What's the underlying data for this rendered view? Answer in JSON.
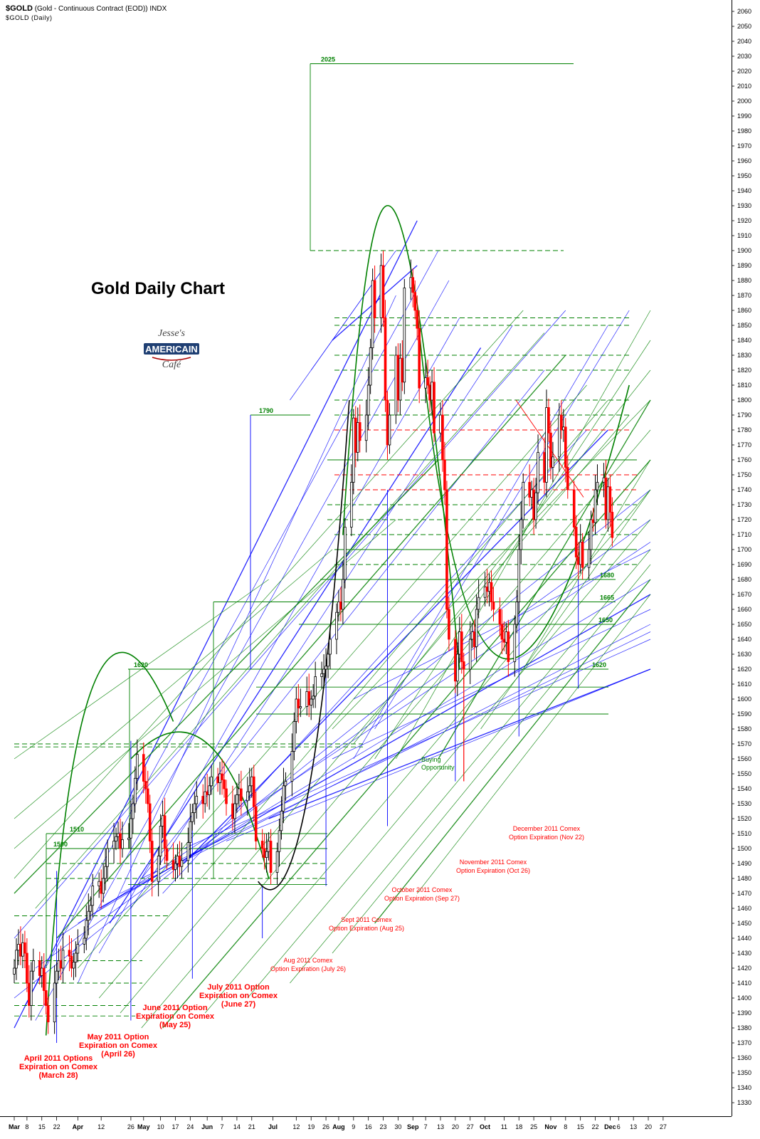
{
  "header": {
    "symbol": "$GOLD",
    "description": "(Gold - Continuous Contract (EOD)) INDX",
    "subtitle": "$GOLD (Daily)"
  },
  "logo": {
    "line1": "Jesse's",
    "line2": "AMERICAIN",
    "line3": "Café"
  },
  "chart_data": {
    "type": "candlestick",
    "title": "Gold Daily Chart",
    "ylim": [
      1325,
      2062
    ],
    "y_axis_position": "right",
    "y_ticks": [
      1330,
      1340,
      1350,
      1360,
      1370,
      1380,
      1390,
      1400,
      1410,
      1420,
      1430,
      1440,
      1450,
      1460,
      1470,
      1480,
      1490,
      1500,
      1510,
      1520,
      1530,
      1540,
      1550,
      1560,
      1570,
      1580,
      1590,
      1600,
      1610,
      1620,
      1630,
      1640,
      1650,
      1660,
      1670,
      1680,
      1690,
      1700,
      1710,
      1720,
      1730,
      1740,
      1750,
      1760,
      1770,
      1780,
      1790,
      1800,
      1810,
      1820,
      1830,
      1840,
      1850,
      1860,
      1870,
      1880,
      1890,
      1900,
      1910,
      1920,
      1930,
      1940,
      1950,
      1960,
      1970,
      1980,
      1990,
      2000,
      2010,
      2020,
      2030,
      2040,
      2050,
      2060
    ],
    "x_ticks": [
      {
        "day": 0,
        "label": "Mar",
        "bold": true
      },
      {
        "day": 6,
        "label": "8",
        "bold": false
      },
      {
        "day": 13,
        "label": "15",
        "bold": false
      },
      {
        "day": 20,
        "label": "22",
        "bold": false
      },
      {
        "day": 30,
        "label": "Apr",
        "bold": true
      },
      {
        "day": 41,
        "label": "12",
        "bold": false
      },
      {
        "day": 55,
        "label": "26",
        "bold": false
      },
      {
        "day": 61,
        "label": "May",
        "bold": true
      },
      {
        "day": 69,
        "label": "10",
        "bold": false
      },
      {
        "day": 76,
        "label": "17",
        "bold": false
      },
      {
        "day": 83,
        "label": "24",
        "bold": false
      },
      {
        "day": 91,
        "label": "Jun",
        "bold": true
      },
      {
        "day": 98,
        "label": "7",
        "bold": false
      },
      {
        "day": 105,
        "label": "14",
        "bold": false
      },
      {
        "day": 112,
        "label": "21",
        "bold": false
      },
      {
        "day": 122,
        "label": "Jul",
        "bold": true
      },
      {
        "day": 133,
        "label": "12",
        "bold": false
      },
      {
        "day": 140,
        "label": "19",
        "bold": false
      },
      {
        "day": 147,
        "label": "26",
        "bold": false
      },
      {
        "day": 153,
        "label": "Aug",
        "bold": true
      },
      {
        "day": 160,
        "label": "9",
        "bold": false
      },
      {
        "day": 167,
        "label": "16",
        "bold": false
      },
      {
        "day": 174,
        "label": "23",
        "bold": false
      },
      {
        "day": 181,
        "label": "30",
        "bold": false
      },
      {
        "day": 188,
        "label": "Sep",
        "bold": true
      },
      {
        "day": 194,
        "label": "7",
        "bold": false
      },
      {
        "day": 201,
        "label": "13",
        "bold": false
      },
      {
        "day": 208,
        "label": "20",
        "bold": false
      },
      {
        "day": 215,
        "label": "27",
        "bold": false
      },
      {
        "day": 222,
        "label": "Oct",
        "bold": true
      },
      {
        "day": 231,
        "label": "11",
        "bold": false
      },
      {
        "day": 238,
        "label": "18",
        "bold": false
      },
      {
        "day": 245,
        "label": "25",
        "bold": false
      },
      {
        "day": 253,
        "label": "Nov",
        "bold": true
      },
      {
        "day": 260,
        "label": "8",
        "bold": false
      },
      {
        "day": 267,
        "label": "15",
        "bold": false
      },
      {
        "day": 274,
        "label": "22",
        "bold": false
      },
      {
        "day": 281,
        "label": "Dec",
        "bold": true
      },
      {
        "day": 285,
        "label": "6",
        "bold": false
      },
      {
        "day": 292,
        "label": "13",
        "bold": false
      },
      {
        "day": 299,
        "label": "20",
        "bold": false
      },
      {
        "day": 306,
        "label": "27",
        "bold": false
      }
    ],
    "candles": [
      {
        "day": 0,
        "c": 1420
      },
      {
        "day": 1,
        "c": 1432
      },
      {
        "day": 2,
        "c": 1436
      },
      {
        "day": 3,
        "c": 1428
      },
      {
        "day": 4,
        "c": 1437
      },
      {
        "day": 5,
        "c": 1430
      },
      {
        "day": 6,
        "c": 1410
      },
      {
        "day": 7,
        "c": 1395
      },
      {
        "day": 8,
        "c": 1418
      },
      {
        "day": 9,
        "c": 1425
      },
      {
        "day": 12,
        "c": 1415
      },
      {
        "day": 13,
        "c": 1420
      },
      {
        "day": 14,
        "c": 1405
      },
      {
        "day": 15,
        "c": 1395
      },
      {
        "day": 16,
        "c": 1384
      },
      {
        "day": 19,
        "c": 1410
      },
      {
        "day": 20,
        "c": 1418
      },
      {
        "day": 21,
        "c": 1425
      },
      {
        "day": 22,
        "c": 1420
      },
      {
        "day": 23,
        "c": 1432
      },
      {
        "day": 26,
        "c": 1428
      },
      {
        "day": 27,
        "c": 1420
      },
      {
        "day": 28,
        "c": 1424
      },
      {
        "day": 29,
        "c": 1430
      },
      {
        "day": 30,
        "c": 1436
      },
      {
        "day": 33,
        "c": 1440
      },
      {
        "day": 34,
        "c": 1452
      },
      {
        "day": 35,
        "c": 1458
      },
      {
        "day": 36,
        "c": 1462
      },
      {
        "day": 37,
        "c": 1475
      },
      {
        "day": 40,
        "c": 1478
      },
      {
        "day": 41,
        "c": 1470
      },
      {
        "day": 42,
        "c": 1480
      },
      {
        "day": 43,
        "c": 1488
      },
      {
        "day": 44,
        "c": 1500
      },
      {
        "day": 47,
        "c": 1505
      },
      {
        "day": 48,
        "c": 1508
      },
      {
        "day": 49,
        "c": 1510
      },
      {
        "day": 50,
        "c": 1500
      },
      {
        "day": 51,
        "c": 1506
      },
      {
        "day": 54,
        "c": 1507
      },
      {
        "day": 55,
        "c": 1520
      },
      {
        "day": 56,
        "c": 1530
      },
      {
        "day": 57,
        "c": 1547
      },
      {
        "day": 58,
        "c": 1563
      },
      {
        "day": 61,
        "c": 1545
      },
      {
        "day": 62,
        "c": 1540
      },
      {
        "day": 63,
        "c": 1530
      },
      {
        "day": 64,
        "c": 1505
      },
      {
        "day": 65,
        "c": 1478
      },
      {
        "day": 68,
        "c": 1495
      },
      {
        "day": 69,
        "c": 1515
      },
      {
        "day": 70,
        "c": 1522
      },
      {
        "day": 71,
        "c": 1500
      },
      {
        "day": 72,
        "c": 1492
      },
      {
        "day": 75,
        "c": 1486
      },
      {
        "day": 76,
        "c": 1490
      },
      {
        "day": 77,
        "c": 1495
      },
      {
        "day": 78,
        "c": 1488
      },
      {
        "day": 79,
        "c": 1492
      },
      {
        "day": 82,
        "c": 1504
      },
      {
        "day": 83,
        "c": 1518
      },
      {
        "day": 84,
        "c": 1524
      },
      {
        "day": 85,
        "c": 1530
      },
      {
        "day": 86,
        "c": 1535
      },
      {
        "day": 89,
        "c": 1530
      },
      {
        "day": 90,
        "c": 1538
      },
      {
        "day": 91,
        "c": 1536
      },
      {
        "day": 92,
        "c": 1542
      },
      {
        "day": 93,
        "c": 1548
      },
      {
        "day": 96,
        "c": 1544
      },
      {
        "day": 97,
        "c": 1550
      },
      {
        "day": 98,
        "c": 1546
      },
      {
        "day": 99,
        "c": 1540
      },
      {
        "day": 100,
        "c": 1530
      },
      {
        "day": 103,
        "c": 1520
      },
      {
        "day": 104,
        "c": 1530
      },
      {
        "day": 105,
        "c": 1536
      },
      {
        "day": 106,
        "c": 1540
      },
      {
        "day": 107,
        "c": 1532
      },
      {
        "day": 110,
        "c": 1538
      },
      {
        "day": 111,
        "c": 1542
      },
      {
        "day": 112,
        "c": 1548
      },
      {
        "day": 113,
        "c": 1528
      },
      {
        "day": 114,
        "c": 1505
      },
      {
        "day": 117,
        "c": 1500
      },
      {
        "day": 118,
        "c": 1494
      },
      {
        "day": 119,
        "c": 1498
      },
      {
        "day": 120,
        "c": 1505
      },
      {
        "day": 121,
        "c": 1484
      },
      {
        "day": 124,
        "c": 1498
      },
      {
        "day": 125,
        "c": 1512
      },
      {
        "day": 126,
        "c": 1525
      },
      {
        "day": 127,
        "c": 1542
      },
      {
        "day": 128,
        "c": 1545
      },
      {
        "day": 131,
        "c": 1565
      },
      {
        "day": 132,
        "c": 1585
      },
      {
        "day": 133,
        "c": 1600
      },
      {
        "day": 134,
        "c": 1594
      },
      {
        "day": 135,
        "c": 1595
      },
      {
        "day": 138,
        "c": 1605
      },
      {
        "day": 139,
        "c": 1596
      },
      {
        "day": 140,
        "c": 1600
      },
      {
        "day": 141,
        "c": 1602
      },
      {
        "day": 142,
        "c": 1615
      },
      {
        "day": 145,
        "c": 1617
      },
      {
        "day": 146,
        "c": 1620
      },
      {
        "day": 147,
        "c": 1622
      },
      {
        "day": 148,
        "c": 1630
      },
      {
        "day": 149,
        "c": 1640
      },
      {
        "day": 152,
        "c": 1658
      },
      {
        "day": 153,
        "c": 1665
      },
      {
        "day": 154,
        "c": 1660
      },
      {
        "day": 155,
        "c": 1680
      },
      {
        "day": 156,
        "c": 1715
      },
      {
        "day": 159,
        "c": 1745
      },
      {
        "day": 160,
        "c": 1788
      },
      {
        "day": 161,
        "c": 1765
      },
      {
        "day": 162,
        "c": 1785
      },
      {
        "day": 163,
        "c": 1773
      },
      {
        "day": 166,
        "c": 1790
      },
      {
        "day": 167,
        "c": 1810
      },
      {
        "day": 168,
        "c": 1835
      },
      {
        "day": 169,
        "c": 1880
      },
      {
        "day": 170,
        "c": 1855
      },
      {
        "day": 173,
        "c": 1890
      },
      {
        "day": 174,
        "c": 1855
      },
      {
        "day": 175,
        "c": 1800
      },
      {
        "day": 176,
        "c": 1770
      },
      {
        "day": 177,
        "c": 1790
      },
      {
        "day": 180,
        "c": 1830
      },
      {
        "day": 181,
        "c": 1800
      },
      {
        "day": 182,
        "c": 1828
      },
      {
        "day": 183,
        "c": 1812
      },
      {
        "day": 184,
        "c": 1875
      },
      {
        "day": 187,
        "c": 1882
      },
      {
        "day": 188,
        "c": 1872
      },
      {
        "day": 189,
        "c": 1860
      },
      {
        "day": 190,
        "c": 1848
      },
      {
        "day": 191,
        "c": 1808
      },
      {
        "day": 194,
        "c": 1815
      },
      {
        "day": 195,
        "c": 1810
      },
      {
        "day": 196,
        "c": 1800
      },
      {
        "day": 197,
        "c": 1812
      },
      {
        "day": 198,
        "c": 1778
      },
      {
        "day": 201,
        "c": 1790
      },
      {
        "day": 202,
        "c": 1760
      },
      {
        "day": 203,
        "c": 1740
      },
      {
        "day": 204,
        "c": 1660
      },
      {
        "day": 205,
        "c": 1640
      },
      {
        "day": 208,
        "c": 1612
      },
      {
        "day": 209,
        "c": 1630
      },
      {
        "day": 210,
        "c": 1645
      },
      {
        "day": 211,
        "c": 1625
      },
      {
        "day": 212,
        "c": 1620
      },
      {
        "day": 215,
        "c": 1640
      },
      {
        "day": 216,
        "c": 1645
      },
      {
        "day": 217,
        "c": 1635
      },
      {
        "day": 218,
        "c": 1660
      },
      {
        "day": 219,
        "c": 1668
      },
      {
        "day": 222,
        "c": 1675
      },
      {
        "day": 223,
        "c": 1672
      },
      {
        "day": 224,
        "c": 1678
      },
      {
        "day": 225,
        "c": 1665
      },
      {
        "day": 226,
        "c": 1660
      },
      {
        "day": 229,
        "c": 1650
      },
      {
        "day": 230,
        "c": 1640
      },
      {
        "day": 231,
        "c": 1638
      },
      {
        "day": 232,
        "c": 1645
      },
      {
        "day": 233,
        "c": 1625
      },
      {
        "day": 236,
        "c": 1650
      },
      {
        "day": 237,
        "c": 1665
      },
      {
        "day": 238,
        "c": 1700
      },
      {
        "day": 239,
        "c": 1720
      },
      {
        "day": 240,
        "c": 1745
      },
      {
        "day": 243,
        "c": 1735
      },
      {
        "day": 244,
        "c": 1740
      },
      {
        "day": 245,
        "c": 1720
      },
      {
        "day": 246,
        "c": 1738
      },
      {
        "day": 247,
        "c": 1765
      },
      {
        "day": 250,
        "c": 1745
      },
      {
        "day": 251,
        "c": 1795
      },
      {
        "day": 252,
        "c": 1778
      },
      {
        "day": 253,
        "c": 1755
      },
      {
        "day": 254,
        "c": 1762
      },
      {
        "day": 257,
        "c": 1790
      },
      {
        "day": 258,
        "c": 1780
      },
      {
        "day": 259,
        "c": 1782
      },
      {
        "day": 260,
        "c": 1755
      },
      {
        "day": 261,
        "c": 1740
      },
      {
        "day": 264,
        "c": 1715
      },
      {
        "day": 265,
        "c": 1695
      },
      {
        "day": 266,
        "c": 1690
      },
      {
        "day": 267,
        "c": 1705
      },
      {
        "day": 268,
        "c": 1688
      },
      {
        "day": 271,
        "c": 1700
      },
      {
        "day": 272,
        "c": 1720
      },
      {
        "day": 273,
        "c": 1718
      },
      {
        "day": 274,
        "c": 1740
      },
      {
        "day": 275,
        "c": 1745
      },
      {
        "day": 278,
        "c": 1748
      },
      {
        "day": 279,
        "c": 1720
      },
      {
        "day": 280,
        "c": 1742
      },
      {
        "day": 281,
        "c": 1725
      },
      {
        "day": 282,
        "c": 1708
      }
    ],
    "level_labels": [
      {
        "text": "2025",
        "price": 2025
      },
      {
        "text": "1790",
        "price": 1790
      },
      {
        "text": "1620",
        "price": 1620
      },
      {
        "text": "1510",
        "price": 1510
      },
      {
        "text": "1500",
        "price": 1500
      },
      {
        "text": "1680",
        "price": 1680
      },
      {
        "text": "1665",
        "price": 1665
      },
      {
        "text": "1650",
        "price": 1650
      },
      {
        "text": "1620",
        "price": 1620
      }
    ],
    "annotations": [
      {
        "lines": [
          "April 2011 Options",
          "Expiration on Comex",
          "(March 28)"
        ],
        "day": 20
      },
      {
        "lines": [
          "May 2011 Option",
          "Expiration on Comex",
          "(April 26)"
        ],
        "day": 55
      },
      {
        "lines": [
          "June 2011 Option",
          "Expiration on Comex",
          "(May 25)"
        ],
        "day": 84
      },
      {
        "lines": [
          "July 2011 Option",
          "Expiration on Comex",
          "(June 27)"
        ],
        "day": 117
      },
      {
        "lines": [
          "Aug 2011 Comex",
          "Option Expiration (July 26)"
        ],
        "day": 147
      },
      {
        "lines": [
          "Sept 2011 Comex",
          "Option Expiration (Aug 25)"
        ],
        "day": 176
      },
      {
        "lines": [
          "October 2011 Comex",
          "Option Expiration (Sep 27)"
        ],
        "day": 208
      },
      {
        "lines": [
          "November 2011 Comex",
          "Option Expiration  (Oct 26)"
        ],
        "day": 238
      },
      {
        "lines": [
          "December 2011 Comex",
          "Option Expiration (Nov 22)"
        ],
        "day": 266
      }
    ],
    "buying_opportunity": {
      "lines": [
        "Buying",
        "Opportunity"
      ],
      "day": 212
    },
    "colors": {
      "up": "#000000",
      "down": "#ff0000",
      "fan_green": "#008000",
      "fan_blue": "#0000ff",
      "annotation": "#ff0000"
    }
  }
}
